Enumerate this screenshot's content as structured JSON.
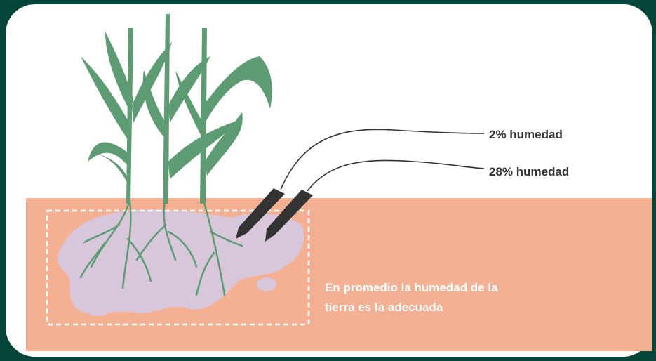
{
  "sensors": [
    {
      "label": "2% humedad"
    },
    {
      "label": "28% humedad"
    }
  ],
  "note": {
    "lines": [
      "En promedio la humedad de la",
      "tierra es la adecuada"
    ]
  }
}
